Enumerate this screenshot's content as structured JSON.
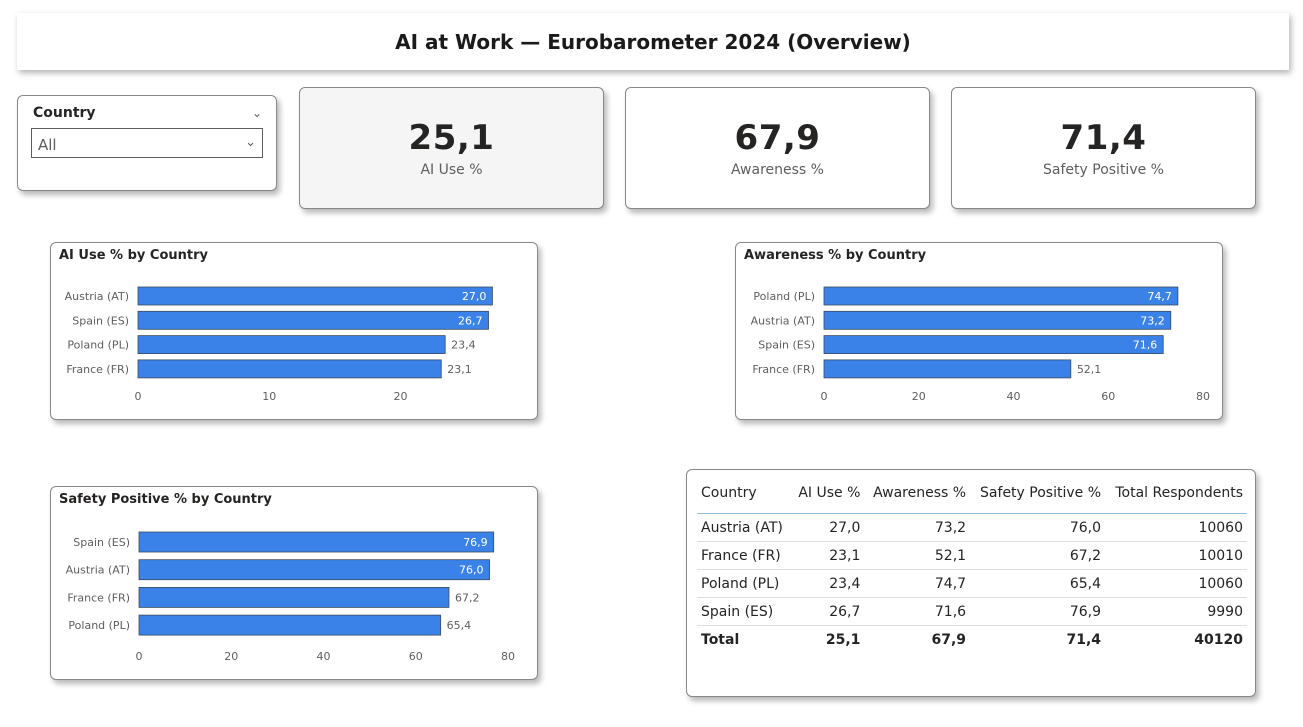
{
  "title": "AI at Work — Eurobarometer 2024 (Overview)",
  "slicer": {
    "header": "Country",
    "value": "All"
  },
  "kpis": [
    {
      "value": "25,1",
      "label": "AI Use %"
    },
    {
      "value": "67,9",
      "label": "Awareness %"
    },
    {
      "value": "71,4",
      "label": "Safety Positive %"
    }
  ],
  "colors": {
    "bar": "#3b82e8",
    "accent_line": "#8fbfd6"
  },
  "chart_data": [
    {
      "type": "bar",
      "orientation": "horizontal",
      "title": "AI Use % by Country",
      "categories": [
        "Austria (AT)",
        "Spain (ES)",
        "Poland (PL)",
        "France (FR)"
      ],
      "values": [
        27.0,
        26.7,
        23.4,
        23.1
      ],
      "labels": [
        "27,0",
        "26,7",
        "23,4",
        "23,1"
      ],
      "xlim": [
        0,
        27.5
      ],
      "xticks": [
        0,
        10,
        20
      ],
      "grid": false
    },
    {
      "type": "bar",
      "orientation": "horizontal",
      "title": "Awareness % by Country",
      "categories": [
        "Poland (PL)",
        "Austria (AT)",
        "Spain (ES)",
        "France (FR)"
      ],
      "values": [
        74.7,
        73.2,
        71.6,
        52.1
      ],
      "labels": [
        "74,7",
        "73,2",
        "71,6",
        "52,1"
      ],
      "xlim": [
        0,
        80
      ],
      "xticks": [
        0,
        20,
        40,
        60,
        80
      ],
      "grid": false
    },
    {
      "type": "bar",
      "orientation": "horizontal",
      "title": "Safety Positive % by Country",
      "categories": [
        "Spain (ES)",
        "Austria (AT)",
        "France (FR)",
        "Poland (PL)"
      ],
      "values": [
        76.9,
        76.0,
        67.2,
        65.4
      ],
      "labels": [
        "76,9",
        "76,0",
        "67,2",
        "65,4"
      ],
      "xlim": [
        0,
        80
      ],
      "xticks": [
        0,
        20,
        40,
        60,
        80
      ],
      "grid": false
    },
    {
      "type": "table",
      "columns": [
        "Country",
        "AI Use %",
        "Awareness %",
        "Safety Positive %",
        "Total Respondents"
      ],
      "rows": [
        [
          "Austria (AT)",
          "27,0",
          "73,2",
          "76,0",
          "10060"
        ],
        [
          "France (FR)",
          "23,1",
          "52,1",
          "67,2",
          "10010"
        ],
        [
          "Poland (PL)",
          "23,4",
          "74,7",
          "65,4",
          "10060"
        ],
        [
          "Spain (ES)",
          "26,7",
          "71,6",
          "76,9",
          "9990"
        ]
      ],
      "total": [
        "Total",
        "25,1",
        "67,9",
        "71,4",
        "40120"
      ]
    }
  ]
}
